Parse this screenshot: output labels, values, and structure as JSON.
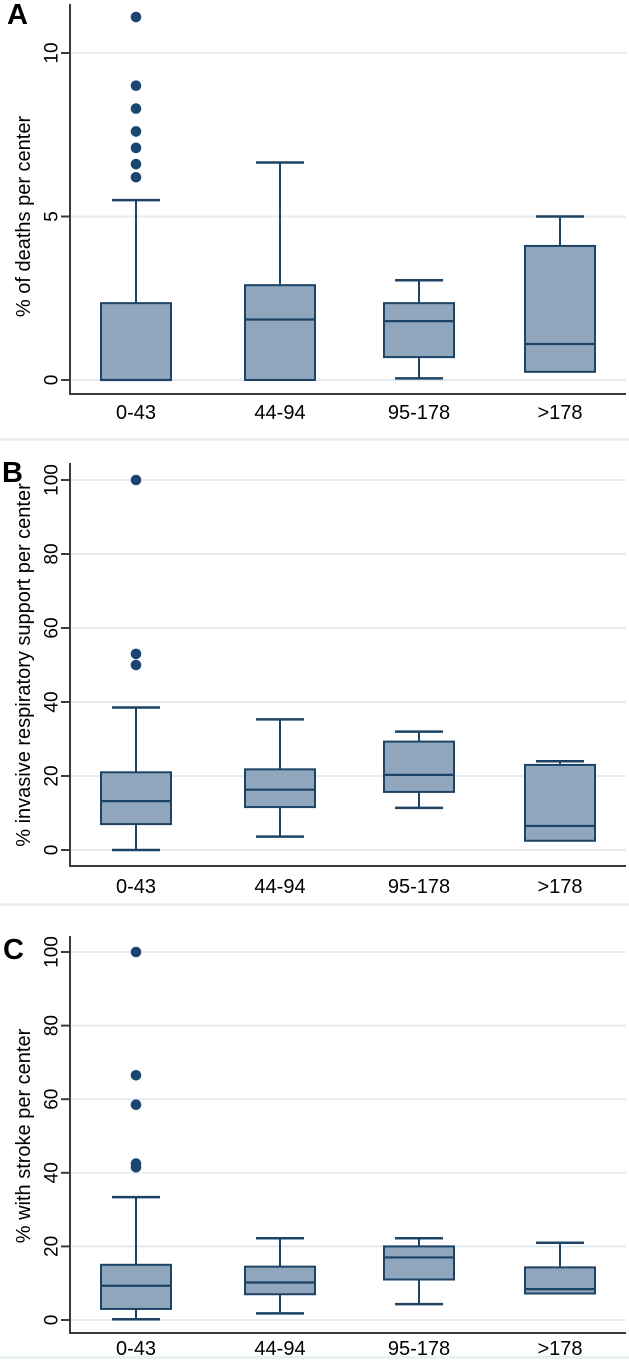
{
  "colors": {
    "box_fill": "#8FA6BD",
    "box_stroke": "#1D4466",
    "outlier": "#1B4672",
    "gridline": "#E3EDF3",
    "axis": "#3A3A3A",
    "text": "#000000",
    "divider": "#E9F1F5",
    "background": "#FFFFFF"
  },
  "chart_data": [
    {
      "type": "box",
      "panel": "A",
      "title": "",
      "ylabel": "% of deaths per center",
      "yticks": [
        0,
        5,
        10
      ],
      "ylim": [
        0,
        11.5
      ],
      "grid": true,
      "legend": "none",
      "categories": [
        "0-43",
        "44-94",
        "95-178",
        ">178"
      ],
      "boxes": [
        {
          "category": "0-43",
          "whisker_low": null,
          "q1": 0,
          "median": 0,
          "q3": 2.35,
          "whisker_high": 5.5,
          "outliers": [
            6.2,
            6.6,
            7.1,
            7.6,
            8.3,
            9.0,
            11.1
          ]
        },
        {
          "category": "44-94",
          "whisker_low": null,
          "q1": 0,
          "median": 1.85,
          "q3": 2.9,
          "whisker_high": 6.65,
          "outliers": []
        },
        {
          "category": "95-178",
          "whisker_low": 0.05,
          "q1": 0.7,
          "median": 1.8,
          "q3": 2.35,
          "whisker_high": 3.05,
          "outliers": []
        },
        {
          "category": ">178",
          "whisker_low": null,
          "q1": 0.25,
          "median": 1.1,
          "q3": 4.1,
          "whisker_high": 5.0,
          "outliers": []
        }
      ]
    },
    {
      "type": "box",
      "panel": "B",
      "title": "",
      "ylabel": "% invasive respiratory support per center",
      "yticks": [
        0,
        20,
        40,
        60,
        80,
        100
      ],
      "ylim": [
        0,
        104
      ],
      "grid": true,
      "legend": "none",
      "categories": [
        "0-43",
        "44-94",
        "95-178",
        ">178"
      ],
      "boxes": [
        {
          "category": "0-43",
          "whisker_low": 0,
          "q1": 7,
          "median": 13.2,
          "q3": 21,
          "whisker_high": 38.5,
          "outliers": [
            50,
            53,
            100
          ]
        },
        {
          "category": "44-94",
          "whisker_low": 3.6,
          "q1": 11.6,
          "median": 16.3,
          "q3": 21.8,
          "whisker_high": 35.3,
          "outliers": []
        },
        {
          "category": "95-178",
          "whisker_low": 11.4,
          "q1": 15.7,
          "median": 20.3,
          "q3": 29.3,
          "whisker_high": 32,
          "outliers": []
        },
        {
          "category": ">178",
          "whisker_low": null,
          "q1": 2.5,
          "median": 6.5,
          "q3": 23,
          "whisker_high": 24,
          "outliers": []
        }
      ]
    },
    {
      "type": "box",
      "panel": "C",
      "title": "",
      "ylabel": "% with stroke per center",
      "yticks": [
        0,
        20,
        40,
        60,
        80,
        100
      ],
      "ylim": [
        0,
        104
      ],
      "grid": true,
      "legend": "none",
      "categories": [
        "0-43",
        "44-94",
        "95-178",
        ">178"
      ],
      "boxes": [
        {
          "category": "0-43",
          "whisker_low": 0.2,
          "q1": 3,
          "median": 9.3,
          "q3": 15,
          "whisker_high": 33.4,
          "outliers": [
            41.5,
            42.5,
            58.5,
            66.5,
            100
          ]
        },
        {
          "category": "44-94",
          "whisker_low": 1.8,
          "q1": 7,
          "median": 10.2,
          "q3": 14.5,
          "whisker_high": 22.2,
          "outliers": []
        },
        {
          "category": "95-178",
          "whisker_low": 4.3,
          "q1": 11,
          "median": 17,
          "q3": 20,
          "whisker_high": 22.2,
          "outliers": []
        },
        {
          "category": ">178",
          "whisker_low": null,
          "q1": 7.2,
          "median": 8.4,
          "q3": 14.3,
          "whisker_high": 21,
          "outliers": []
        }
      ]
    }
  ]
}
